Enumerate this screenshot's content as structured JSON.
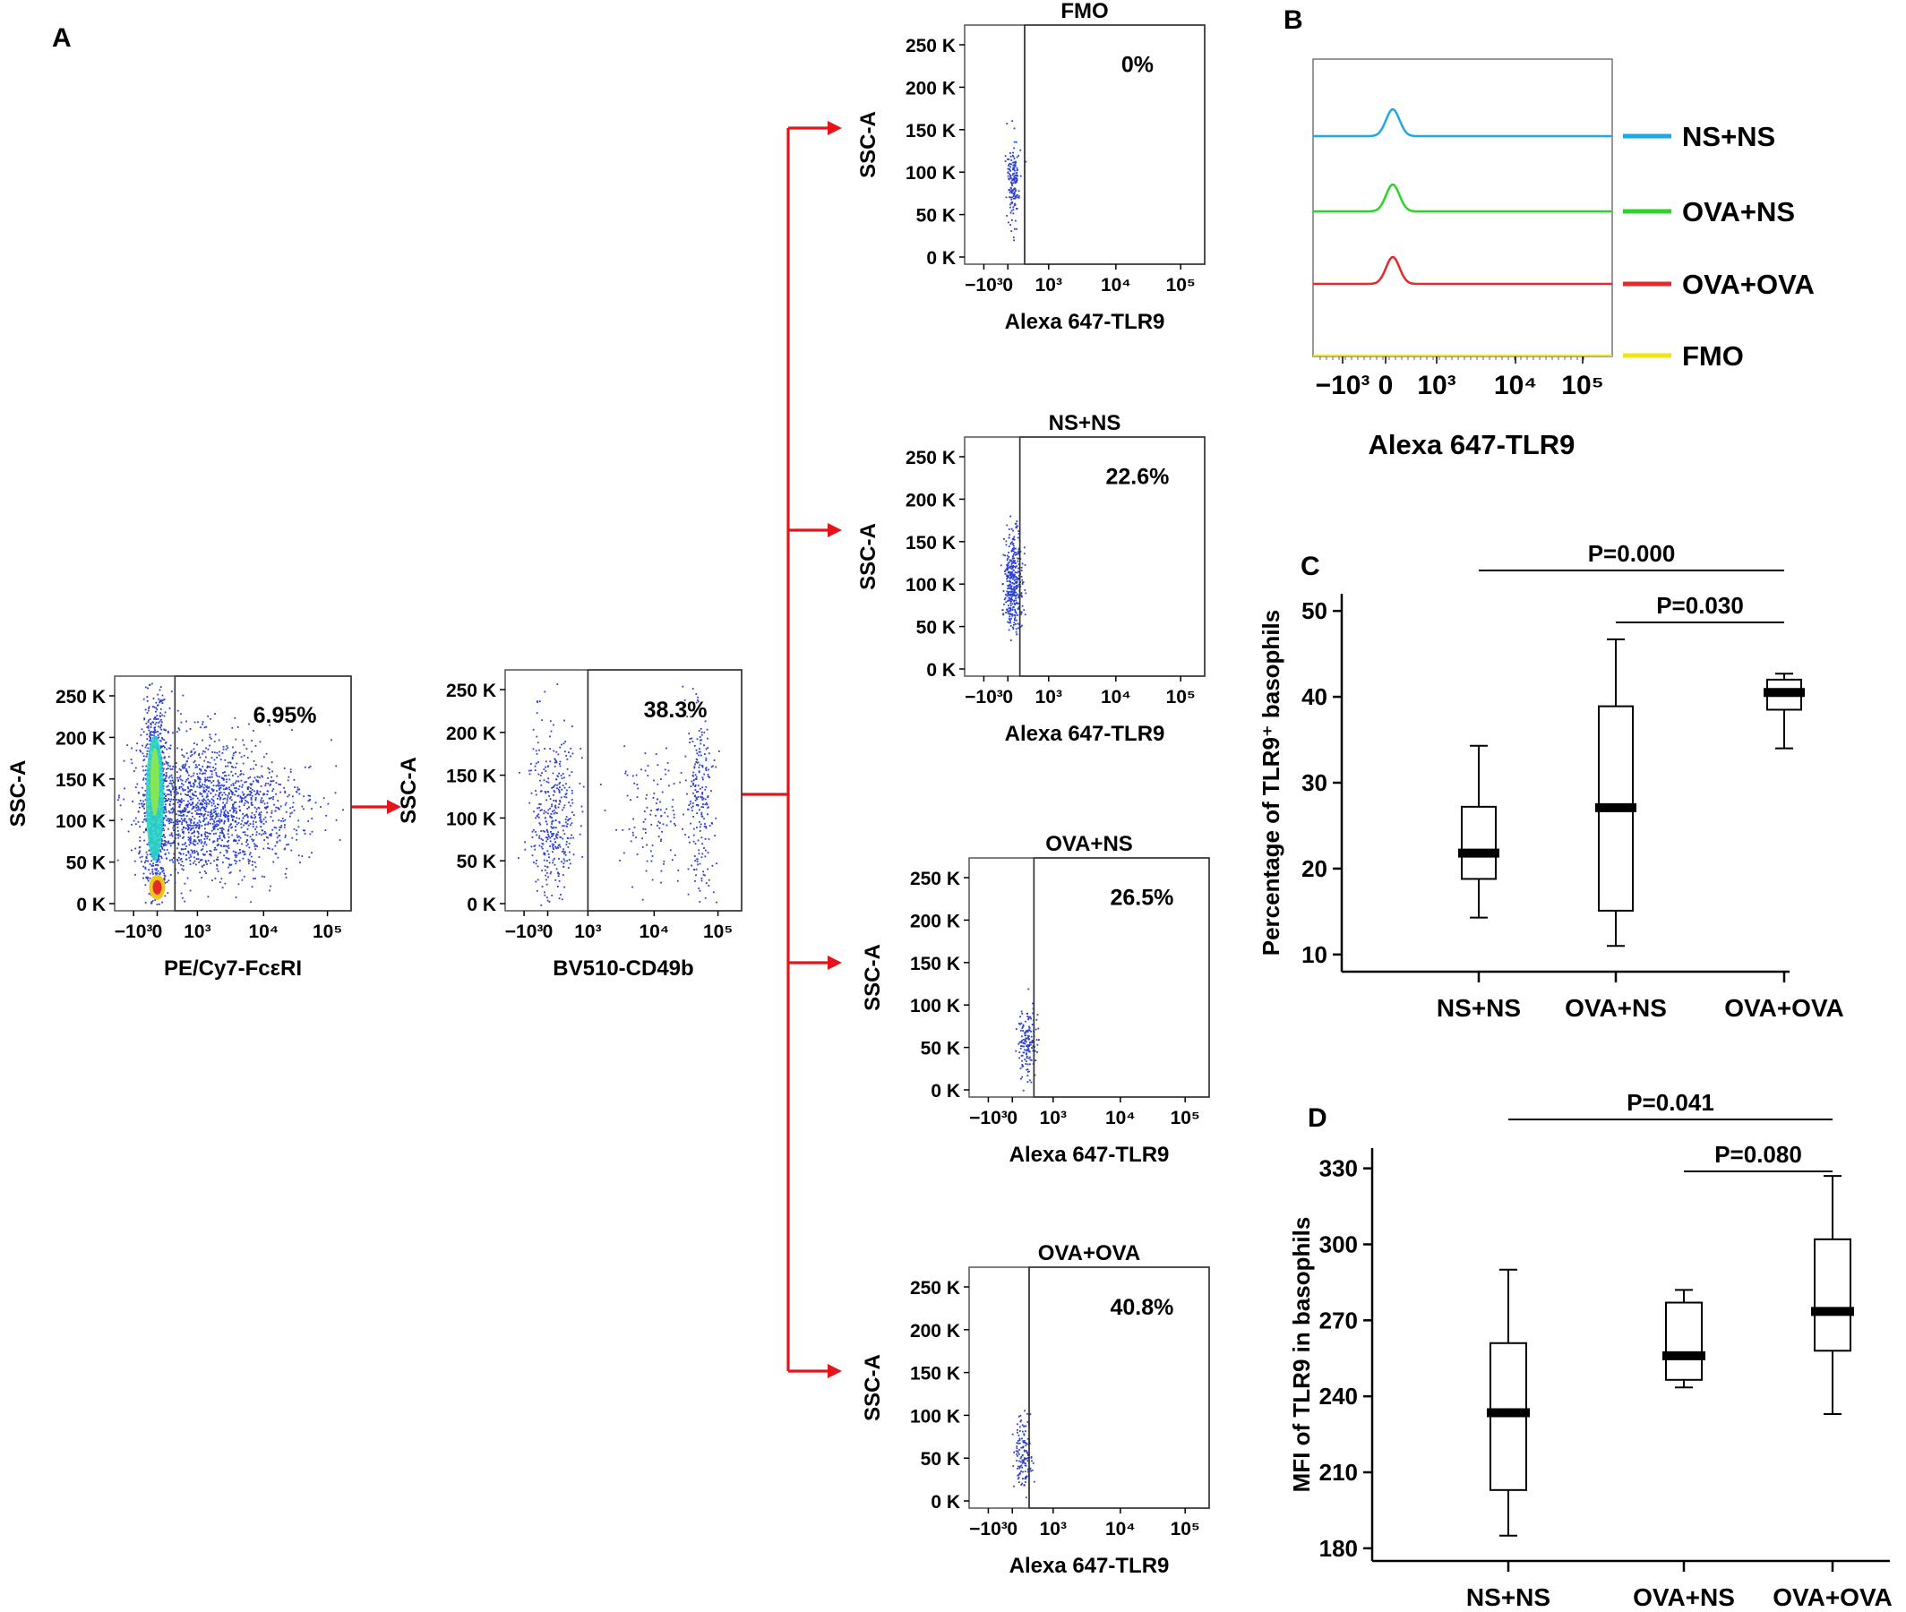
{
  "panel_labels": {
    "A": "A",
    "B": "B",
    "C": "C",
    "D": "D"
  },
  "colors": {
    "arrow": "#e5141b",
    "dots": "#2b3fd0",
    "ns_ns": "#1fa8e4",
    "ova_ns": "#2bd42b",
    "ova_ova": "#e8282a",
    "fmo": "#f2e40e"
  },
  "dot_plots": [
    {
      "id": "gate-fceri",
      "title": "",
      "percent": "6.95%",
      "xlabel": "PE/Cy7-FcεRI",
      "ylabel": "SSC-A",
      "yticks": [
        "250 K",
        "200 K",
        "150 K",
        "100 K",
        "50 K",
        "0 K"
      ],
      "xticks": [
        "−10³",
        "0",
        "10³",
        "10⁴",
        "10⁵"
      ]
    },
    {
      "id": "gate-cd49b",
      "title": "",
      "percent": "38.3%",
      "xlabel": "BV510-CD49b",
      "ylabel": "SSC-A",
      "yticks": [
        "250 K",
        "200 K",
        "150 K",
        "100 K",
        "50 K",
        "0 K"
      ],
      "xticks": [
        "−10³",
        "0",
        "10³",
        "10⁴",
        "10⁵"
      ]
    },
    {
      "id": "tlr9-fmo",
      "title": "FMO",
      "percent": "0%",
      "xlabel": "Alexa 647-TLR9",
      "ylabel": "SSC-A",
      "yticks": [
        "250 K",
        "200 K",
        "150 K",
        "100 K",
        "50 K",
        "0 K"
      ],
      "xticks": [
        "−10³",
        "0",
        "10³",
        "10⁴",
        "10⁵"
      ]
    },
    {
      "id": "tlr9-ns-ns",
      "title": "NS+NS",
      "percent": "22.6%",
      "xlabel": "Alexa 647-TLR9",
      "ylabel": "SSC-A",
      "yticks": [
        "250 K",
        "200 K",
        "150 K",
        "100 K",
        "50 K",
        "0 K"
      ],
      "xticks": [
        "−10³",
        "0",
        "10³",
        "10⁴",
        "10⁵"
      ]
    },
    {
      "id": "tlr9-ova-ns",
      "title": "OVA+NS",
      "percent": "26.5%",
      "xlabel": "Alexa 647-TLR9",
      "ylabel": "SSC-A",
      "yticks": [
        "250 K",
        "200 K",
        "150 K",
        "100 K",
        "50 K",
        "0 K"
      ],
      "xticks": [
        "−10³",
        "0",
        "10³",
        "10⁴",
        "10⁵"
      ]
    },
    {
      "id": "tlr9-ova-ova",
      "title": "OVA+OVA",
      "percent": "40.8%",
      "xlabel": "Alexa 647-TLR9",
      "ylabel": "SSC-A",
      "yticks": [
        "250 K",
        "200 K",
        "150 K",
        "100 K",
        "50 K",
        "0 K"
      ],
      "xticks": [
        "−10³",
        "0",
        "10³",
        "10⁴",
        "10⁵"
      ]
    }
  ],
  "histogram": {
    "xlabel": "Alexa 647-TLR9",
    "xticks": [
      "−10³",
      "0",
      "10³",
      "10⁴",
      "10⁵"
    ],
    "legend": [
      {
        "label": "NS+NS",
        "color": "#1fa8e4"
      },
      {
        "label": "OVA+NS",
        "color": "#2bd42b"
      },
      {
        "label": "OVA+OVA",
        "color": "#e8282a"
      },
      {
        "label": "FMO",
        "color": "#f2e40e"
      }
    ]
  },
  "chart_data": [
    {
      "type": "box",
      "panel": "C",
      "ylabel": "Percentage of TLR9⁺ basophils",
      "categories": [
        "NS+NS",
        "OVA+NS",
        "OVA+OVA"
      ],
      "ylim": [
        8,
        52
      ],
      "yticks": [
        10,
        20,
        30,
        40,
        50
      ],
      "boxes": [
        {
          "min": 14.3,
          "q1": 18.8,
          "median": 21.8,
          "q3": 27.2,
          "max": 34.3
        },
        {
          "min": 11.0,
          "q1": 15.1,
          "median": 27.1,
          "q3": 38.9,
          "max": 46.7
        },
        {
          "min": 34.0,
          "q1": 38.5,
          "median": 40.5,
          "q3": 42.0,
          "max": 42.7
        }
      ],
      "comparisons": [
        {
          "from": 0,
          "to": 2,
          "label": "P=0.000"
        },
        {
          "from": 1,
          "to": 2,
          "label": "P=0.030"
        }
      ]
    },
    {
      "type": "box",
      "panel": "D",
      "ylabel": "MFI of TLR9 in basophils",
      "categories": [
        "NS+NS",
        "OVA+NS",
        "OVA+OVA"
      ],
      "ylim": [
        175,
        338
      ],
      "yticks": [
        180,
        210,
        240,
        270,
        300,
        330
      ],
      "boxes": [
        {
          "min": 185,
          "q1": 203,
          "median": 233.5,
          "q3": 261,
          "max": 290
        },
        {
          "min": 243.5,
          "q1": 246.5,
          "median": 256,
          "q3": 277,
          "max": 282
        },
        {
          "min": 233,
          "q1": 258,
          "median": 273.5,
          "q3": 302,
          "max": 327
        }
      ],
      "comparisons": [
        {
          "from": 0,
          "to": 2,
          "label": "P=0.041"
        },
        {
          "from": 1,
          "to": 2,
          "label": "P=0.080"
        }
      ]
    }
  ]
}
